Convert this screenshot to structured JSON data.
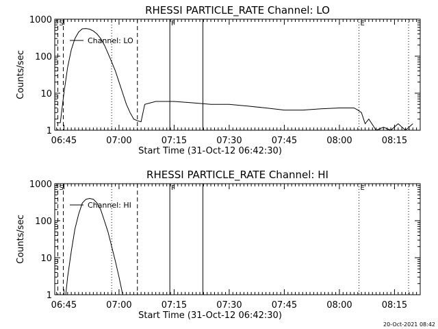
{
  "footer_stamp": "20-Oct-2021 08:42",
  "chart_data": [
    {
      "type": "line",
      "title": "RHESSI PARTICLE_RATE Channel: LO",
      "xlabel": "Start Time (31-Oct-12 06:42:30)",
      "ylabel": "Counts/sec",
      "y_scale": "log",
      "ylim": [
        1,
        1000
      ],
      "xlim": [
        "06:42:30",
        "08:22:00"
      ],
      "x_ticks": [
        "06:45",
        "07:00",
        "07:15",
        "07:30",
        "07:45",
        "08:00",
        "08:15"
      ],
      "y_ticks": [
        "1",
        "10",
        "100",
        "1000"
      ],
      "legend": "Channel: LO",
      "legend_placement": "top-left",
      "grid": false,
      "markers": [
        {
          "label": "S",
          "time": "06:43:20",
          "style": "dashed"
        },
        {
          "label": "",
          "time": "06:44:50",
          "style": "dashed"
        },
        {
          "label": "",
          "time": "06:58:00",
          "style": "dotted"
        },
        {
          "label": "",
          "time": "07:05:00",
          "style": "dashed"
        },
        {
          "label": "F",
          "time": "07:13:50",
          "style": "solid"
        },
        {
          "label": "",
          "time": "07:22:50",
          "style": "solid"
        },
        {
          "label": "E",
          "time": "08:05:20",
          "style": "dotted"
        },
        {
          "label": "",
          "time": "08:18:50",
          "style": "dotted"
        }
      ],
      "series": [
        {
          "name": "Channel: LO",
          "x": [
            "06:43:00",
            "06:44:00",
            "06:45:00",
            "06:46:00",
            "06:47:00",
            "06:48:00",
            "06:49:00",
            "06:50:00",
            "06:51:00",
            "06:52:00",
            "06:53:00",
            "06:54:00",
            "06:55:00",
            "06:56:00",
            "06:57:00",
            "06:58:00",
            "06:59:00",
            "07:00:00",
            "07:01:00",
            "07:02:00",
            "07:03:00",
            "07:04:00",
            "07:05:00",
            "07:06:00",
            "07:07:00",
            "07:10:00",
            "07:15:00",
            "07:20:00",
            "07:25:00",
            "07:30:00",
            "07:35:00",
            "07:40:00",
            "07:45:00",
            "07:50:00",
            "07:55:00",
            "08:00:00",
            "08:04:00",
            "08:05:00",
            "08:06:00",
            "08:07:00",
            "08:08:00",
            "08:10:00",
            "08:12:00",
            "08:14:00",
            "08:16:00",
            "08:18:00",
            "08:20:00"
          ],
          "y": [
            1.6,
            1.6,
            10,
            50,
            150,
            300,
            450,
            550,
            560,
            540,
            480,
            400,
            300,
            200,
            120,
            70,
            40,
            20,
            10,
            5,
            3,
            2,
            1.8,
            1.7,
            5,
            6,
            6,
            5.5,
            5,
            5,
            4.5,
            4,
            3.5,
            3.5,
            3.8,
            4,
            4,
            3.5,
            3,
            1.5,
            2,
            1,
            1.2,
            1,
            1.5,
            1,
            1.5
          ]
        }
      ]
    },
    {
      "type": "line",
      "title": "RHESSI PARTICLE_RATE Channel: HI",
      "xlabel": "Start Time (31-Oct-12 06:42:30)",
      "ylabel": "Counts/sec",
      "y_scale": "log",
      "ylim": [
        1,
        1000
      ],
      "xlim": [
        "06:42:30",
        "08:22:00"
      ],
      "x_ticks": [
        "06:45",
        "07:00",
        "07:15",
        "07:30",
        "07:45",
        "08:00",
        "08:15"
      ],
      "y_ticks": [
        "1",
        "10",
        "100",
        "1000"
      ],
      "legend": "Channel: HI",
      "legend_placement": "top-left",
      "grid": false,
      "markers": [
        {
          "label": "S",
          "time": "06:43:20",
          "style": "dashed"
        },
        {
          "label": "",
          "time": "06:44:50",
          "style": "dashed"
        },
        {
          "label": "",
          "time": "06:58:00",
          "style": "dotted"
        },
        {
          "label": "",
          "time": "07:05:00",
          "style": "dashed"
        },
        {
          "label": "F",
          "time": "07:13:50",
          "style": "solid"
        },
        {
          "label": "",
          "time": "07:22:50",
          "style": "solid"
        },
        {
          "label": "E",
          "time": "08:05:20",
          "style": "dotted"
        },
        {
          "label": "",
          "time": "08:18:50",
          "style": "dotted"
        }
      ],
      "series": [
        {
          "name": "Channel: HI",
          "x": [
            "06:45:30",
            "06:46:00",
            "06:47:00",
            "06:48:00",
            "06:49:00",
            "06:50:00",
            "06:51:00",
            "06:52:00",
            "06:53:00",
            "06:54:00",
            "06:55:00",
            "06:56:00",
            "06:57:00",
            "06:58:00",
            "06:59:00",
            "07:00:00",
            "07:01:00"
          ],
          "y": [
            1,
            3,
            15,
            60,
            150,
            300,
            380,
            400,
            380,
            300,
            200,
            100,
            50,
            20,
            8,
            3,
            1
          ]
        }
      ]
    }
  ]
}
